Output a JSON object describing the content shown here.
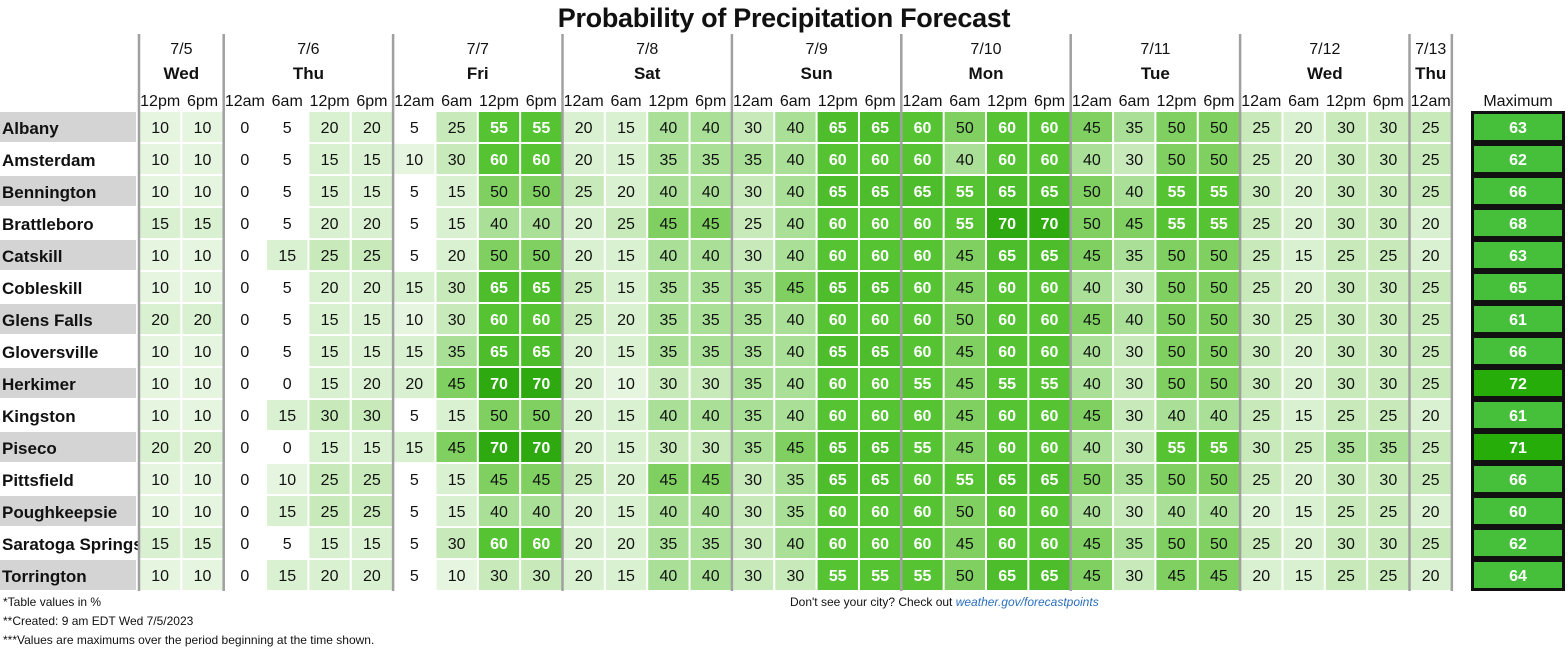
{
  "chart_data": {
    "type": "table",
    "title": "Probability of Precipitation Forecast",
    "days": [
      {
        "date": "7/5",
        "day": "Wed",
        "times": [
          "12pm",
          "6pm"
        ]
      },
      {
        "date": "7/6",
        "day": "Thu",
        "times": [
          "12am",
          "6am",
          "12pm",
          "6pm"
        ]
      },
      {
        "date": "7/7",
        "day": "Fri",
        "times": [
          "12am",
          "6am",
          "12pm",
          "6pm"
        ]
      },
      {
        "date": "7/8",
        "day": "Sat",
        "times": [
          "12am",
          "6am",
          "12pm",
          "6pm"
        ]
      },
      {
        "date": "7/9",
        "day": "Sun",
        "times": [
          "12am",
          "6am",
          "12pm",
          "6pm"
        ]
      },
      {
        "date": "7/10",
        "day": "Mon",
        "times": [
          "12am",
          "6am",
          "12pm",
          "6pm"
        ]
      },
      {
        "date": "7/11",
        "day": "Tue",
        "times": [
          "12am",
          "6am",
          "12pm",
          "6pm"
        ]
      },
      {
        "date": "7/12",
        "day": "Wed",
        "times": [
          "12am",
          "6am",
          "12pm",
          "6pm"
        ]
      },
      {
        "date": "7/13",
        "day": "Thu",
        "times": [
          "12am"
        ]
      }
    ],
    "max_label": "Maximum",
    "rows": [
      {
        "city": "Albany",
        "values": [
          10,
          10,
          0,
          5,
          20,
          20,
          5,
          25,
          55,
          55,
          20,
          15,
          40,
          40,
          30,
          40,
          65,
          65,
          60,
          50,
          60,
          60,
          45,
          35,
          50,
          50,
          25,
          20,
          30,
          30,
          25
        ],
        "max": 63
      },
      {
        "city": "Amsterdam",
        "values": [
          10,
          10,
          0,
          5,
          15,
          15,
          10,
          30,
          60,
          60,
          20,
          15,
          35,
          35,
          35,
          40,
          60,
          60,
          60,
          40,
          60,
          60,
          40,
          30,
          50,
          50,
          25,
          20,
          30,
          30,
          25
        ],
        "max": 62
      },
      {
        "city": "Bennington",
        "values": [
          10,
          10,
          0,
          5,
          15,
          15,
          5,
          15,
          50,
          50,
          25,
          20,
          40,
          40,
          30,
          40,
          65,
          65,
          65,
          55,
          65,
          65,
          50,
          40,
          55,
          55,
          30,
          20,
          30,
          30,
          25
        ],
        "max": 66
      },
      {
        "city": "Brattleboro",
        "values": [
          15,
          15,
          0,
          5,
          20,
          20,
          5,
          15,
          40,
          40,
          20,
          25,
          45,
          45,
          25,
          40,
          60,
          60,
          60,
          55,
          70,
          70,
          50,
          45,
          55,
          55,
          25,
          20,
          30,
          30,
          20
        ],
        "max": 68
      },
      {
        "city": "Catskill",
        "values": [
          10,
          10,
          0,
          15,
          25,
          25,
          5,
          20,
          50,
          50,
          20,
          15,
          40,
          40,
          30,
          40,
          60,
          60,
          60,
          45,
          65,
          65,
          45,
          35,
          50,
          50,
          25,
          15,
          25,
          25,
          20
        ],
        "max": 63
      },
      {
        "city": "Cobleskill",
        "values": [
          10,
          10,
          0,
          5,
          20,
          20,
          15,
          30,
          65,
          65,
          25,
          15,
          35,
          35,
          35,
          45,
          65,
          65,
          60,
          45,
          60,
          60,
          40,
          30,
          50,
          50,
          25,
          20,
          30,
          30,
          25
        ],
        "max": 65
      },
      {
        "city": "Glens Falls",
        "values": [
          20,
          20,
          0,
          5,
          15,
          15,
          10,
          30,
          60,
          60,
          25,
          20,
          35,
          35,
          35,
          40,
          60,
          60,
          60,
          50,
          60,
          60,
          45,
          40,
          50,
          50,
          30,
          25,
          30,
          30,
          25
        ],
        "max": 61
      },
      {
        "city": "Gloversville",
        "values": [
          10,
          10,
          0,
          5,
          15,
          15,
          15,
          35,
          65,
          65,
          20,
          15,
          35,
          35,
          35,
          40,
          65,
          65,
          60,
          45,
          60,
          60,
          40,
          30,
          50,
          50,
          30,
          20,
          30,
          30,
          25
        ],
        "max": 66
      },
      {
        "city": "Herkimer",
        "values": [
          10,
          10,
          0,
          0,
          15,
          20,
          20,
          45,
          70,
          70,
          20,
          10,
          30,
          30,
          35,
          40,
          60,
          60,
          55,
          45,
          55,
          55,
          40,
          30,
          50,
          50,
          30,
          20,
          30,
          30,
          25
        ],
        "max": 72
      },
      {
        "city": "Kingston",
        "values": [
          10,
          10,
          0,
          15,
          30,
          30,
          5,
          15,
          50,
          50,
          20,
          15,
          40,
          40,
          35,
          40,
          60,
          60,
          60,
          45,
          60,
          60,
          45,
          30,
          40,
          40,
          25,
          15,
          25,
          25,
          20
        ],
        "max": 61
      },
      {
        "city": "Piseco",
        "values": [
          20,
          20,
          0,
          0,
          15,
          15,
          15,
          45,
          70,
          70,
          20,
          15,
          30,
          30,
          35,
          45,
          65,
          65,
          55,
          45,
          60,
          60,
          40,
          30,
          55,
          55,
          30,
          25,
          35,
          35,
          25
        ],
        "max": 71
      },
      {
        "city": "Pittsfield",
        "values": [
          10,
          10,
          0,
          10,
          25,
          25,
          5,
          15,
          45,
          45,
          25,
          20,
          45,
          45,
          30,
          35,
          65,
          65,
          60,
          55,
          65,
          65,
          50,
          35,
          50,
          50,
          25,
          20,
          30,
          30,
          25
        ],
        "max": 66
      },
      {
        "city": "Poughkeepsie",
        "values": [
          10,
          10,
          0,
          15,
          25,
          25,
          5,
          15,
          40,
          40,
          20,
          15,
          40,
          40,
          30,
          35,
          60,
          60,
          60,
          50,
          60,
          60,
          40,
          30,
          40,
          40,
          20,
          15,
          25,
          25,
          20
        ],
        "max": 60
      },
      {
        "city": "Saratoga Springs",
        "values": [
          15,
          15,
          0,
          5,
          15,
          15,
          5,
          30,
          60,
          60,
          20,
          20,
          35,
          35,
          30,
          40,
          60,
          60,
          60,
          45,
          60,
          60,
          45,
          35,
          50,
          50,
          25,
          20,
          30,
          30,
          25
        ],
        "max": 62
      },
      {
        "city": "Torrington",
        "values": [
          10,
          10,
          0,
          15,
          20,
          20,
          5,
          10,
          30,
          30,
          20,
          15,
          40,
          40,
          30,
          30,
          55,
          55,
          55,
          50,
          65,
          65,
          45,
          30,
          45,
          45,
          20,
          15,
          25,
          25,
          20
        ],
        "max": 64
      }
    ]
  },
  "footnotes": {
    "units": "*Table values in %",
    "created": "**Created: 9 am EDT Wed 7/5/2023",
    "maxnote": "***Values are maximums over the period beginning at the time shown.",
    "city_prompt": "Don't see your city? Check out",
    "city_link": "weather.gov/forecastpoints"
  }
}
